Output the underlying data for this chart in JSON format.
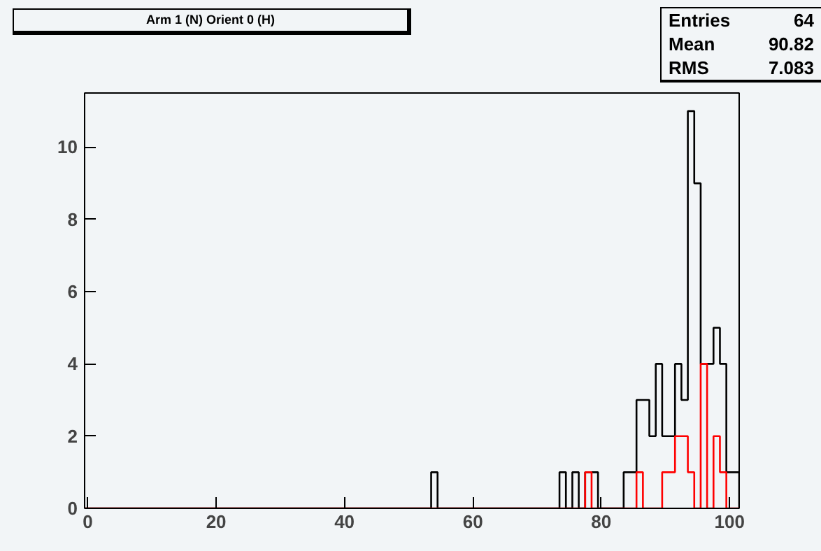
{
  "chart_data": {
    "type": "histogram",
    "title": "Arm 1 (N) Orient 0 (H)",
    "annotations": [
      "Entries",
      "64",
      "Mean",
      "90.82",
      "RMS",
      "7.083"
    ],
    "bins": [
      -0.5,
      0.5,
      1.5,
      2.5,
      3.5,
      4.5,
      5.5,
      6.5,
      7.5,
      8.5,
      9.5,
      10.5,
      11.5,
      12.5,
      13.5,
      14.5,
      15.5,
      16.5,
      17.5,
      18.5,
      19.5,
      20.5,
      21.5,
      22.5,
      23.5,
      24.5,
      25.5,
      26.5,
      27.5,
      28.5,
      29.5,
      30.5,
      31.5,
      32.5,
      33.5,
      34.5,
      35.5,
      36.5,
      37.5,
      38.5,
      39.5,
      40.5,
      41.5,
      42.5,
      43.5,
      44.5,
      45.5,
      46.5,
      47.5,
      48.5,
      49.5,
      50.5,
      51.5,
      52.5,
      53.5,
      54.5,
      55.5,
      56.5,
      57.5,
      58.5,
      59.5,
      60.5,
      61.5,
      62.5,
      63.5,
      64.5,
      65.5,
      66.5,
      67.5,
      68.5,
      69.5,
      70.5,
      71.5,
      72.5,
      73.5,
      74.5,
      75.5,
      76.5,
      77.5,
      78.5,
      79.5,
      80.5,
      81.5,
      82.5,
      83.5,
      84.5,
      85.5,
      86.5,
      87.5,
      88.5,
      89.5,
      90.5,
      91.5,
      92.5,
      93.5,
      94.5,
      95.5,
      96.5,
      97.5,
      98.5,
      99.5,
      100.5,
      101.5
    ],
    "series": [
      {
        "color": "#000000",
        "values": [
          0,
          0,
          0,
          0,
          0,
          0,
          0,
          0,
          0,
          0,
          0,
          0,
          0,
          0,
          0,
          0,
          0,
          0,
          0,
          0,
          0,
          0,
          0,
          0,
          0,
          0,
          0,
          0,
          0,
          0,
          0,
          0,
          0,
          0,
          0,
          0,
          0,
          0,
          0,
          0,
          0,
          0,
          0,
          0,
          0,
          0,
          0,
          0,
          0,
          0,
          0,
          0,
          0,
          0,
          1,
          0,
          0,
          0,
          0,
          0,
          0,
          0,
          0,
          0,
          0,
          0,
          0,
          0,
          0,
          0,
          0,
          0,
          0,
          0,
          1,
          0,
          1,
          0,
          1,
          1,
          0,
          0,
          0,
          0,
          1,
          1,
          3,
          3,
          2,
          4,
          2,
          2,
          4,
          3,
          11,
          9,
          4,
          4,
          5,
          4,
          1,
          1
        ]
      },
      {
        "color": "#ff0000",
        "values": [
          0,
          0,
          0,
          0,
          0,
          0,
          0,
          0,
          0,
          0,
          0,
          0,
          0,
          0,
          0,
          0,
          0,
          0,
          0,
          0,
          0,
          0,
          0,
          0,
          0,
          0,
          0,
          0,
          0,
          0,
          0,
          0,
          0,
          0,
          0,
          0,
          0,
          0,
          0,
          0,
          0,
          0,
          0,
          0,
          0,
          0,
          0,
          0,
          0,
          0,
          0,
          0,
          0,
          0,
          0,
          0,
          0,
          0,
          0,
          0,
          0,
          0,
          0,
          0,
          0,
          0,
          0,
          0,
          0,
          0,
          0,
          0,
          0,
          0,
          0,
          0,
          0,
          0,
          1,
          0,
          0,
          0,
          0,
          0,
          0,
          0,
          1,
          0,
          0,
          0,
          1,
          1,
          2,
          2,
          1,
          0,
          4,
          0,
          2,
          1,
          0,
          0
        ]
      }
    ],
    "xlim": [
      -0.5,
      101.5
    ],
    "ylim": [
      0,
      11.5
    ],
    "xticks": [
      0,
      20,
      40,
      60,
      80,
      100
    ],
    "yticks": [
      0,
      2,
      4,
      6,
      8,
      10
    ],
    "grid": false
  }
}
